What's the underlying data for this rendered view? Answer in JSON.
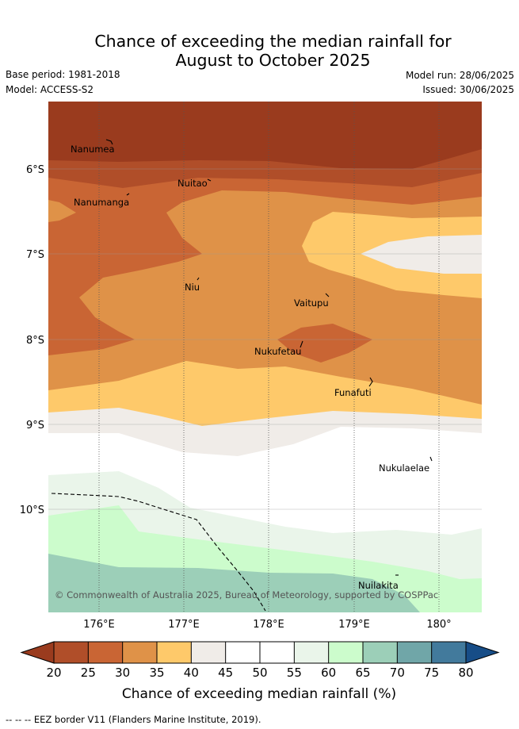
{
  "header": {
    "title_line1": "Chance of exceeding the median rainfall for",
    "title_line2": "August to October 2025",
    "base_period": "Base period: 1981-2018",
    "model": "Model: ACCESS-S2",
    "model_run": "Model run: 28/06/2025",
    "issued": "Issued: 30/06/2025"
  },
  "map": {
    "lon_labels": [
      "176°E",
      "177°E",
      "178°E",
      "179°E",
      "180°"
    ],
    "lat_labels": [
      "6°S",
      "7°S",
      "8°S",
      "9°S",
      "10°S"
    ],
    "places": [
      {
        "name": "Nanumea"
      },
      {
        "name": "Nuitao"
      },
      {
        "name": "Nanumanga"
      },
      {
        "name": "Niu"
      },
      {
        "name": "Vaitupu"
      },
      {
        "name": "Nukufetau"
      },
      {
        "name": "Funafuti"
      },
      {
        "name": "Nukulaelae"
      },
      {
        "name": "Nuilakita"
      }
    ],
    "copyright": "© Commonwealth of Australia 2025, Bureau of Meteorology, supported by COSPPac"
  },
  "colorbar": {
    "title": "Chance of exceeding median rainfall (%)",
    "labels": [
      "20",
      "25",
      "30",
      "35",
      "40",
      "45",
      "50",
      "55",
      "60",
      "65",
      "70",
      "75",
      "80"
    ],
    "colors": {
      "below": "#9a3b1e",
      "b20_25": "#b04e29",
      "b25_30": "#c96534",
      "b30_35": "#df9248",
      "b35_40": "#fec96a",
      "b40_45": "#f0ece8",
      "b45_50": "#ffffff",
      "b50_55": "#ffffff",
      "b55_60": "#eaf5ea",
      "b60_65": "#ccfccc",
      "b65_70": "#9ccfb8",
      "b70_75": "#70a6a8",
      "b75_80": "#427a9c",
      "above": "#174d87"
    }
  },
  "footer": {
    "eez_note": "-- -- -- EEZ border V11 (Flanders Marine Institute, 2019)."
  }
}
